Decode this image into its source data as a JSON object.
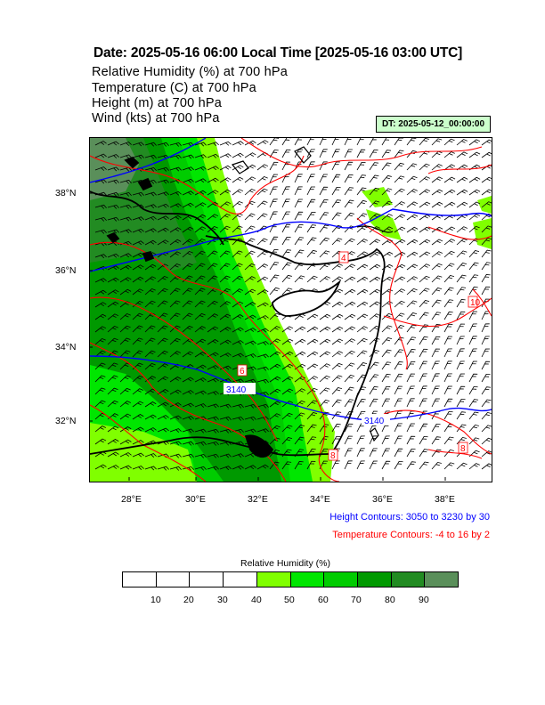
{
  "header": {
    "title": "Date: 2025-05-16  06:00 Local Time [2025-05-16  03:00 UTC]",
    "variables": [
      "Relative Humidity   (%)     at   700 hPa",
      "Temperature   (C)     at   700 hPa",
      "Height   (m)     at   700 hPa",
      "Wind   (kts)     at   700 hPa"
    ],
    "dt_badge": "DT: 2025-05-12_00:00:00"
  },
  "map": {
    "lat_labels": [
      "38°N",
      "36°N",
      "34°N",
      "32°N"
    ],
    "lon_labels": [
      "28°E",
      "30°E",
      "32°E",
      "34°E",
      "36°E",
      "38°E"
    ],
    "height_contour_labels": [
      "3140",
      "3140"
    ],
    "temp_contour_labels": [
      "4",
      "6",
      "8",
      "10",
      "14"
    ],
    "colors": {
      "height": "#0000ff",
      "temperature": "#ff0000",
      "coast": "#000000"
    }
  },
  "notes": {
    "height": "Height Contours: 3050 to 3230 by 30",
    "temperature": "Temperature Contours: -4 to 16 by 2"
  },
  "colorbar": {
    "title": "Relative Humidity  (%)",
    "labels": [
      "10",
      "20",
      "30",
      "40",
      "50",
      "60",
      "70",
      "80",
      "90"
    ],
    "colors": [
      "#ffffff",
      "#ffffff",
      "#ffffff",
      "#ffffff",
      "#80ff00",
      "#00e600",
      "#00cc00",
      "#009900",
      "#228b22",
      "#5a8f5a"
    ]
  }
}
